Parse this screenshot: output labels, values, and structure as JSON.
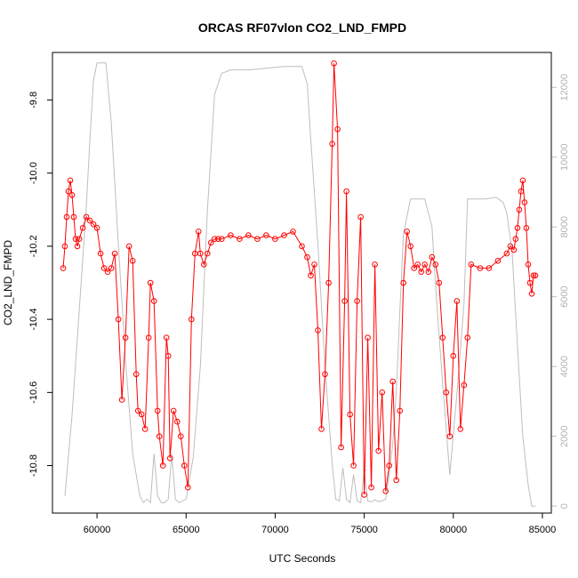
{
  "chart_data": {
    "type": "scatter",
    "title": "ORCAS RF07vlon CO2_LND_FMPD",
    "xlabel": "UTC Seconds",
    "ylabel": "CO2_LND_FMPD",
    "xlim": [
      57500,
      85500
    ],
    "ylim": [
      -10.93,
      -9.67
    ],
    "y2lim": [
      -200,
      13000
    ],
    "x_ticks": [
      60000,
      65000,
      70000,
      75000,
      80000,
      85000
    ],
    "y_ticks": [
      -10.8,
      -10.6,
      -10.4,
      -10.2,
      -10.0,
      -9.8
    ],
    "y2_ticks": [
      0,
      2000,
      4000,
      6000,
      8000,
      10000,
      12000
    ],
    "grid": false,
    "colors": {
      "data": "#ff0000",
      "altitude": "#bebebe",
      "axes": "#000000"
    },
    "series": [
      {
        "axis": "left",
        "style": "points-with-line",
        "x": [
          58100,
          58200,
          58300,
          58400,
          58500,
          58600,
          58700,
          58800,
          58900,
          59000,
          59200,
          59400,
          59600,
          59800,
          60000,
          60200,
          60400,
          60600,
          60800,
          61000,
          61200,
          61400,
          61600,
          61800,
          62000,
          62200,
          62300,
          62500,
          62700,
          62900,
          63000,
          63200,
          63400,
          63500,
          63700,
          63900,
          64000,
          64100,
          64300,
          64500,
          64700,
          64900,
          65100,
          65300,
          65500,
          65700,
          65800,
          66000,
          66200,
          66400,
          66600,
          66800,
          67000,
          67500,
          68000,
          68500,
          69000,
          69500,
          70000,
          70500,
          71000,
          71500,
          71800,
          72000,
          72200,
          72400,
          72600,
          72800,
          73000,
          73200,
          73300,
          73500,
          73700,
          73900,
          74000,
          74200,
          74400,
          74600,
          74800,
          75000,
          75200,
          75400,
          75600,
          75800,
          76000,
          76200,
          76400,
          76600,
          76800,
          77000,
          77200,
          77400,
          77600,
          77800,
          78000,
          78200,
          78400,
          78600,
          78800,
          79000,
          79200,
          79400,
          79600,
          79800,
          80000,
          80200,
          80400,
          80600,
          80800,
          81000,
          81500,
          82000,
          82500,
          83000,
          83200,
          83400,
          83500,
          83600,
          83700,
          83800,
          83900,
          84000,
          84100,
          84200,
          84300,
          84400,
          84500,
          84600
        ],
        "y": [
          -10.26,
          -10.2,
          -10.12,
          -10.05,
          -10.02,
          -10.06,
          -10.12,
          -10.18,
          -10.2,
          -10.18,
          -10.15,
          -10.12,
          -10.13,
          -10.14,
          -10.15,
          -10.22,
          -10.26,
          -10.27,
          -10.26,
          -10.22,
          -10.4,
          -10.62,
          -10.45,
          -10.2,
          -10.24,
          -10.55,
          -10.65,
          -10.66,
          -10.7,
          -10.45,
          -10.3,
          -10.35,
          -10.65,
          -10.72,
          -10.8,
          -10.45,
          -10.5,
          -10.78,
          -10.65,
          -10.68,
          -10.72,
          -10.8,
          -10.86,
          -10.4,
          -10.22,
          -10.16,
          -10.22,
          -10.25,
          -10.22,
          -10.19,
          -10.18,
          -10.18,
          -10.18,
          -10.17,
          -10.18,
          -10.17,
          -10.18,
          -10.17,
          -10.18,
          -10.17,
          -10.16,
          -10.2,
          -10.23,
          -10.28,
          -10.25,
          -10.43,
          -10.7,
          -10.55,
          -10.3,
          -9.92,
          -9.7,
          -9.88,
          -10.75,
          -10.35,
          -10.05,
          -10.66,
          -10.8,
          -10.35,
          -10.12,
          -10.88,
          -10.45,
          -10.86,
          -10.25,
          -10.76,
          -10.6,
          -10.87,
          -10.8,
          -10.57,
          -10.84,
          -10.65,
          -10.3,
          -10.16,
          -10.2,
          -10.26,
          -10.25,
          -10.27,
          -10.25,
          -10.27,
          -10.23,
          -10.25,
          -10.3,
          -10.45,
          -10.6,
          -10.72,
          -10.5,
          -10.35,
          -10.7,
          -10.58,
          -10.45,
          -10.25,
          -10.26,
          -10.26,
          -10.24,
          -10.22,
          -10.2,
          -10.21,
          -10.18,
          -10.15,
          -10.1,
          -10.05,
          -10.02,
          -10.08,
          -10.15,
          -10.25,
          -10.3,
          -10.33,
          -10.28,
          -10.28
        ]
      },
      {
        "axis": "right",
        "style": "line",
        "x": [
          58200,
          58600,
          59000,
          59400,
          59600,
          59800,
          60000,
          60500,
          60800,
          61200,
          61600,
          62000,
          62400,
          62600,
          62800,
          63000,
          63200,
          63400,
          63600,
          63800,
          64000,
          64200,
          64400,
          64600,
          64800,
          65000,
          65400,
          65800,
          66200,
          66600,
          67000,
          67500,
          68500,
          69500,
          70500,
          71500,
          71800,
          72000,
          72400,
          72800,
          73200,
          73400,
          73600,
          73800,
          74000,
          74200,
          74400,
          74600,
          74800,
          75000,
          75200,
          75400,
          75600,
          75800,
          76000,
          76200,
          76400,
          76600,
          76800,
          77000,
          77200,
          77600,
          77800,
          78000,
          78400,
          78800,
          79000,
          79400,
          79800,
          80200,
          80600,
          80800,
          81200,
          81800,
          82400,
          82800,
          83000,
          83300,
          83600,
          83900,
          84200,
          84400,
          84600
        ],
        "y": [
          300,
          2600,
          5600,
          8600,
          10500,
          12200,
          12700,
          12700,
          11000,
          7500,
          4200,
          1500,
          300,
          100,
          200,
          100,
          1500,
          300,
          100,
          100,
          200,
          1500,
          200,
          100,
          150,
          200,
          1400,
          4000,
          8500,
          11800,
          12400,
          12500,
          12500,
          12550,
          12600,
          12600,
          12100,
          10500,
          7500,
          4000,
          1200,
          200,
          150,
          1100,
          200,
          100,
          900,
          150,
          100,
          1000,
          150,
          120,
          180,
          130,
          150,
          200,
          900,
          1800,
          3300,
          5600,
          7800,
          8800,
          8800,
          8800,
          8800,
          8000,
          6300,
          3500,
          900,
          3200,
          5800,
          8800,
          8800,
          8800,
          8850,
          8700,
          8400,
          7300,
          4600,
          2000,
          600,
          0,
          0
        ]
      }
    ]
  }
}
